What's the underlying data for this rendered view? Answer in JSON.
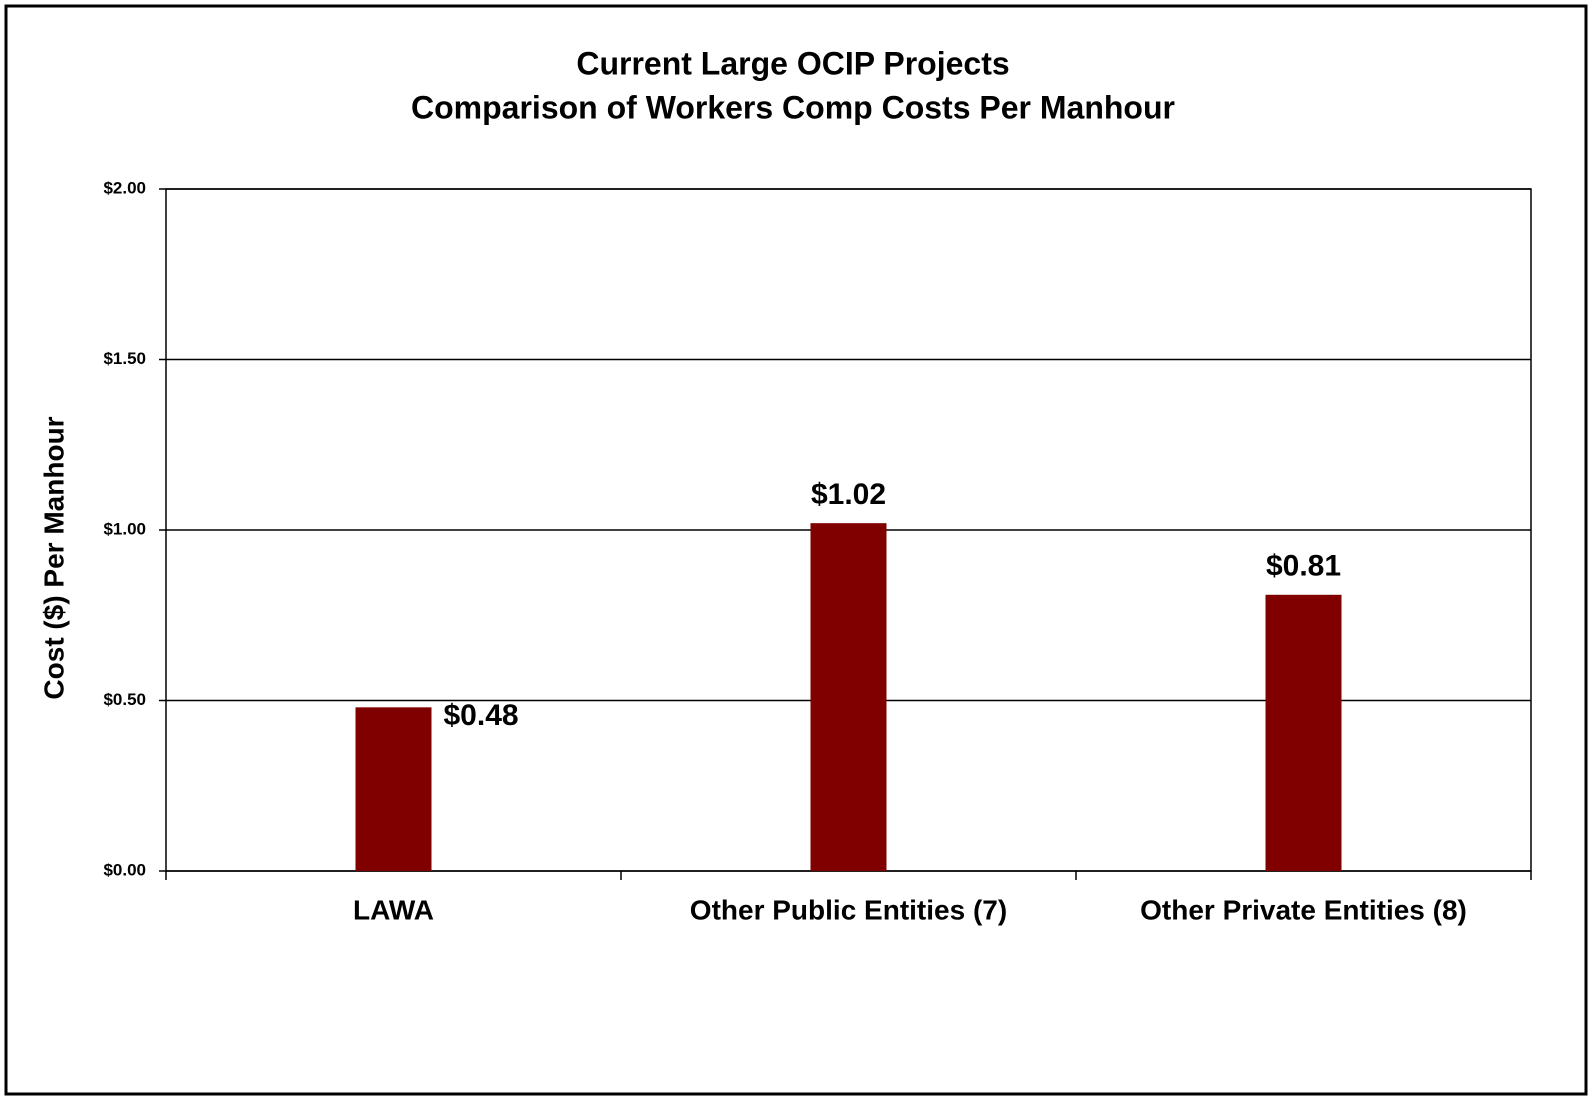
{
  "chart_data": {
    "type": "bar",
    "title": "Current Large OCIP Projects",
    "subtitle": "Comparison of Workers Comp Costs Per Manhour",
    "y_label": "Cost ($) Per Manhour",
    "categories": [
      "LAWA",
      "Other Public Entities (7)",
      "Other Private Entities (8)"
    ],
    "values": [
      0.48,
      1.02,
      0.81
    ],
    "value_labels": [
      "$0.48",
      "$1.02",
      "$0.81"
    ],
    "color": "#800000",
    "value_label_color": "#4a7cf7",
    "ylim": [
      0,
      2
    ],
    "yticks": [
      {
        "value": 0,
        "label": "$0.00"
      },
      {
        "value": 0.5,
        "label": "$0.50"
      },
      {
        "value": 1,
        "label": "$1.00"
      },
      {
        "value": 1.5,
        "label": "$1.50"
      },
      {
        "value": 2,
        "label": "$2.00"
      }
    ],
    "grid": true
  }
}
